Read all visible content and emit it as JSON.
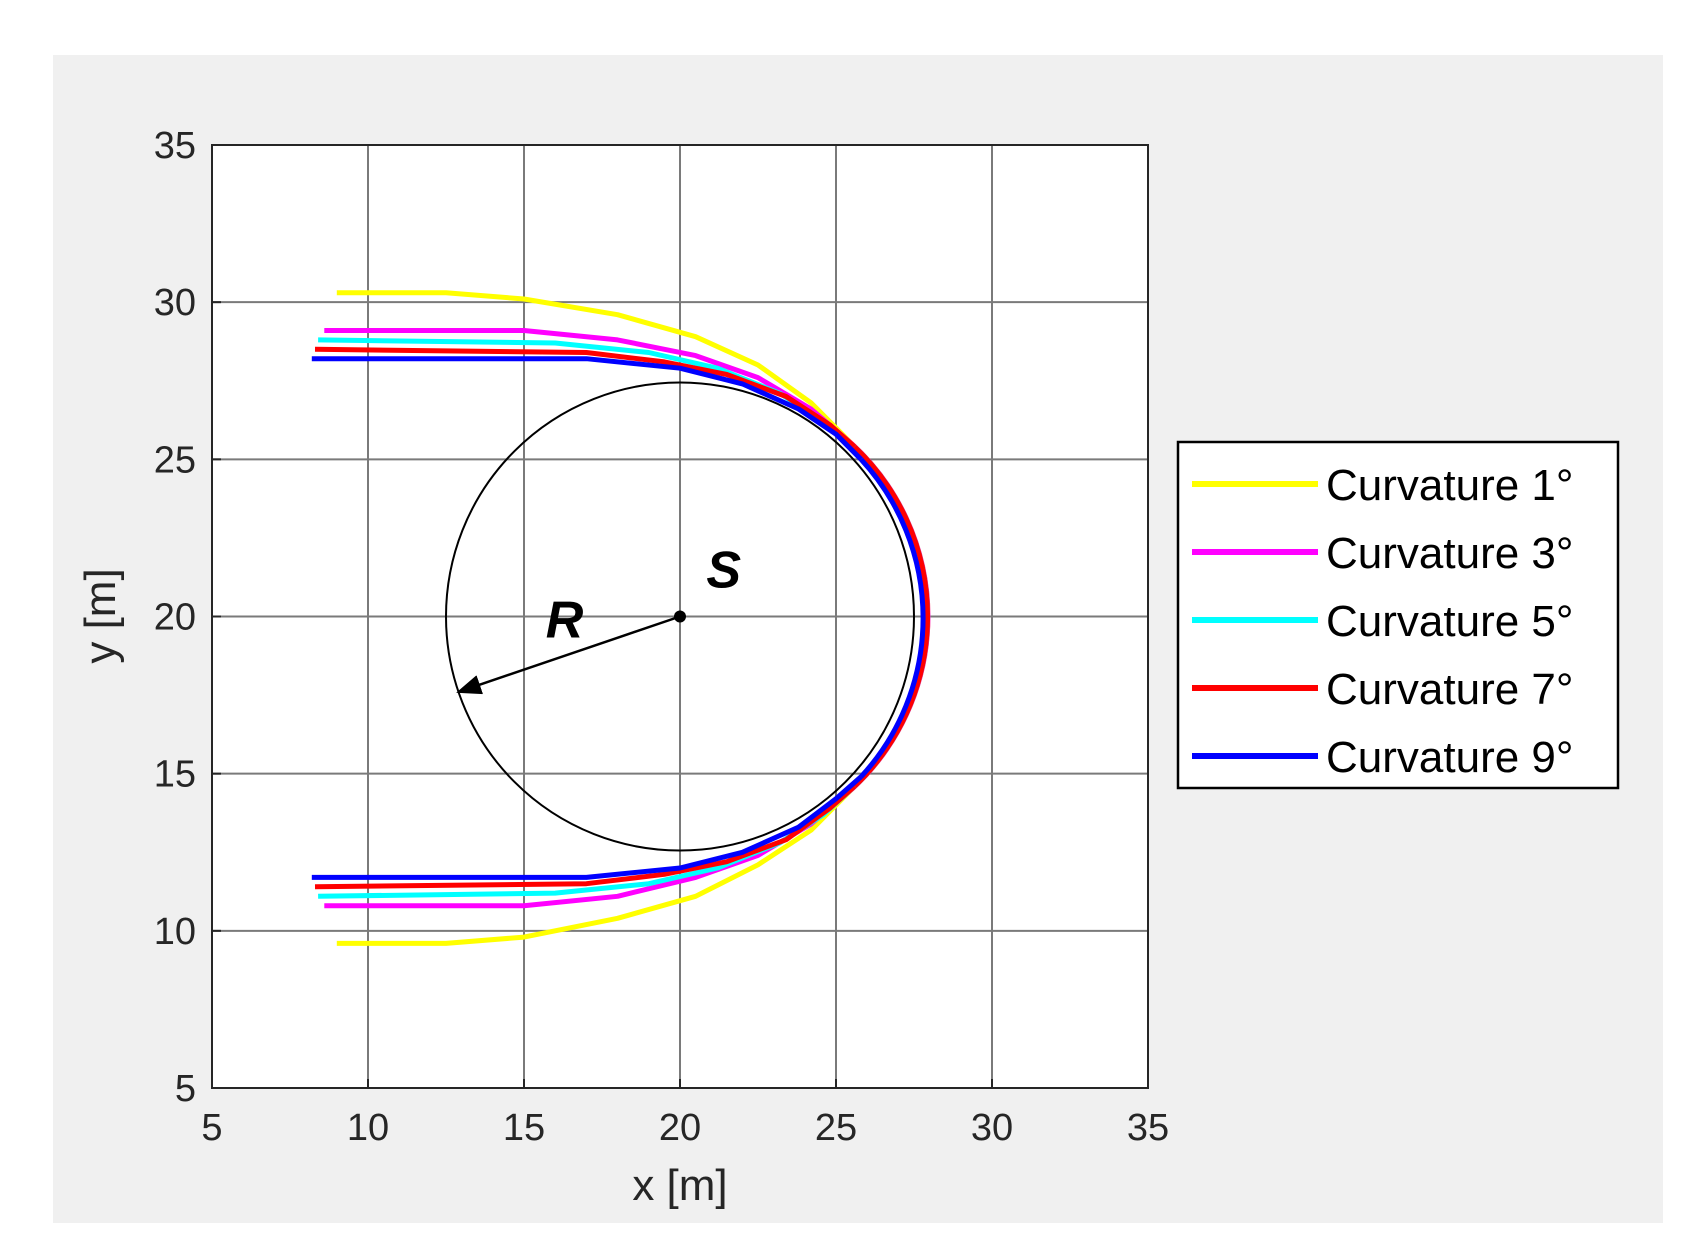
{
  "colors": {
    "figure_background": "#f0f0f0",
    "axes_background": "#ffffff",
    "grid": "#7a7a7a",
    "circle": "#000000"
  },
  "chart_data": {
    "type": "line",
    "title": "",
    "xlabel": "x [m]",
    "ylabel": "y [m]",
    "xlim": [
      5,
      35
    ],
    "ylim": [
      5,
      35
    ],
    "xticks": [
      5,
      10,
      15,
      20,
      25,
      30,
      35
    ],
    "yticks": [
      5,
      10,
      15,
      20,
      25,
      30,
      35
    ],
    "x_tick_labels": [
      "5",
      "10",
      "15",
      "20",
      "25",
      "30",
      "35"
    ],
    "y_tick_labels": [
      "5",
      "10",
      "15",
      "20",
      "25",
      "30",
      "35"
    ],
    "grid": true,
    "legend_position": "outside right",
    "circle": {
      "center": [
        20,
        20
      ],
      "radius": 7.5
    },
    "annotations": [
      {
        "text": "S",
        "x": 21.4,
        "y": 21.5
      },
      {
        "text": "R",
        "x": 16.3,
        "y": 19.9
      }
    ],
    "radius_arrow": {
      "from": [
        20,
        20
      ],
      "to": [
        12.9,
        17.6
      ]
    },
    "series": [
      {
        "name": "Curvature 1°",
        "color": "#ffff00",
        "upper": [
          [
            9,
            30.3
          ],
          [
            12.5,
            30.3
          ],
          [
            15,
            30.1
          ],
          [
            18,
            29.6
          ],
          [
            20.5,
            28.9
          ],
          [
            22.5,
            28.0
          ],
          [
            24.2,
            26.8
          ],
          [
            25.5,
            25.5
          ]
        ],
        "lower": [
          [
            9,
            9.6
          ],
          [
            12.5,
            9.6
          ],
          [
            15,
            9.8
          ],
          [
            18,
            10.4
          ],
          [
            20.5,
            11.1
          ],
          [
            22.5,
            12.1
          ],
          [
            24.2,
            13.2
          ],
          [
            25.5,
            14.5
          ]
        ]
      },
      {
        "name": "Curvature 3°",
        "color": "#ff00ff",
        "upper": [
          [
            8.6,
            29.1
          ],
          [
            15,
            29.1
          ],
          [
            18,
            28.8
          ],
          [
            20.5,
            28.3
          ],
          [
            22.5,
            27.6
          ],
          [
            24.2,
            26.6
          ],
          [
            25.5,
            25.5
          ]
        ],
        "lower": [
          [
            8.6,
            10.8
          ],
          [
            15,
            10.8
          ],
          [
            18,
            11.1
          ],
          [
            20.5,
            11.7
          ],
          [
            22.5,
            12.4
          ],
          [
            24.2,
            13.4
          ],
          [
            25.5,
            14.5
          ]
        ]
      },
      {
        "name": "Curvature 5°",
        "color": "#00ffff",
        "upper": [
          [
            8.4,
            28.8
          ],
          [
            16,
            28.7
          ],
          [
            19,
            28.4
          ],
          [
            21.2,
            27.9
          ],
          [
            23.2,
            27.1
          ],
          [
            24.6,
            26.2
          ],
          [
            25.6,
            25.4
          ]
        ],
        "lower": [
          [
            8.4,
            11.1
          ],
          [
            16,
            11.2
          ],
          [
            19,
            11.5
          ],
          [
            21.2,
            12.0
          ],
          [
            23.2,
            12.8
          ],
          [
            24.6,
            13.7
          ],
          [
            25.6,
            14.6
          ]
        ]
      },
      {
        "name": "Curvature 7°",
        "color": "#ff0000",
        "upper": [
          [
            8.3,
            28.5
          ],
          [
            17,
            28.4
          ],
          [
            19.5,
            28.1
          ],
          [
            21.5,
            27.7
          ],
          [
            23.4,
            27.0
          ],
          [
            24.8,
            26.1
          ],
          [
            25.6,
            25.4
          ]
        ],
        "lower": [
          [
            8.3,
            11.4
          ],
          [
            17,
            11.5
          ],
          [
            19.5,
            11.8
          ],
          [
            21.5,
            12.2
          ],
          [
            23.4,
            12.9
          ],
          [
            24.8,
            13.9
          ],
          [
            25.6,
            14.6
          ]
        ]
      },
      {
        "name": "Curvature 9°",
        "color": "#0000ff",
        "upper": [
          [
            8.2,
            28.2
          ],
          [
            17,
            28.2
          ],
          [
            20,
            27.9
          ],
          [
            22,
            27.4
          ],
          [
            23.8,
            26.6
          ],
          [
            25,
            25.8
          ],
          [
            25.8,
            25.0
          ]
        ],
        "lower": [
          [
            8.2,
            11.7
          ],
          [
            17,
            11.7
          ],
          [
            20,
            12.0
          ],
          [
            22,
            12.5
          ],
          [
            23.8,
            13.3
          ],
          [
            25,
            14.2
          ],
          [
            25.8,
            14.9
          ]
        ]
      }
    ]
  }
}
